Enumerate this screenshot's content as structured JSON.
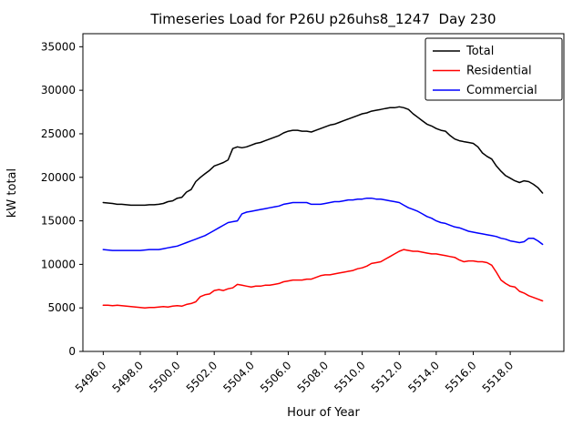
{
  "figure": {
    "title": "Timeseries Load for P26U p26uhs8_1247  Day 230",
    "xlabel": "Hour of Year",
    "ylabel": "kW total"
  },
  "chart_data": {
    "type": "line",
    "title": "Timeseries Load for P26U p26uhs8_1247  Day 230",
    "xlabel": "Hour of Year",
    "ylabel": "kW total",
    "xlim": [
      5494.9,
      5520.9
    ],
    "ylim": [
      0,
      36500
    ],
    "grid": false,
    "legend_position": "upper right",
    "xtick_values": [
      5496,
      5498,
      5500,
      5502,
      5504,
      5506,
      5508,
      5510,
      5512,
      5514,
      5516,
      5518
    ],
    "xtick_labels": [
      "5496.0",
      "5498.0",
      "5500.0",
      "5502.0",
      "5504.0",
      "5506.0",
      "5508.0",
      "5510.0",
      "5512.0",
      "5514.0",
      "5516.0",
      "5518.0"
    ],
    "ytick_values": [
      0,
      5000,
      10000,
      15000,
      20000,
      25000,
      30000,
      35000
    ],
    "ytick_labels": [
      "0",
      "5000",
      "10000",
      "15000",
      "20000",
      "25000",
      "30000",
      "35000"
    ],
    "x": [
      5496.0,
      5496.25,
      5496.5,
      5496.75,
      5497.0,
      5497.25,
      5497.5,
      5497.75,
      5498.0,
      5498.25,
      5498.5,
      5498.75,
      5499.0,
      5499.25,
      5499.5,
      5499.75,
      5500.0,
      5500.25,
      5500.5,
      5500.75,
      5501.0,
      5501.25,
      5501.5,
      5501.75,
      5502.0,
      5502.25,
      5502.5,
      5502.75,
      5503.0,
      5503.25,
      5503.5,
      5503.75,
      5504.0,
      5504.25,
      5504.5,
      5504.75,
      5505.0,
      5505.25,
      5505.5,
      5505.75,
      5506.0,
      5506.25,
      5506.5,
      5506.75,
      5507.0,
      5507.25,
      5507.5,
      5507.75,
      5508.0,
      5508.25,
      5508.5,
      5508.75,
      5509.0,
      5509.25,
      5509.5,
      5509.75,
      5510.0,
      5510.25,
      5510.5,
      5510.75,
      5511.0,
      5511.25,
      5511.5,
      5511.75,
      5512.0,
      5512.25,
      5512.5,
      5512.75,
      5513.0,
      5513.25,
      5513.5,
      5513.75,
      5514.0,
      5514.25,
      5514.5,
      5514.75,
      5515.0,
      5515.25,
      5515.5,
      5515.75,
      5516.0,
      5516.25,
      5516.5,
      5516.75,
      5517.0,
      5517.25,
      5517.5,
      5517.75,
      5518.0,
      5518.25,
      5518.5,
      5518.75,
      5519.0,
      5519.25,
      5519.5,
      5519.75
    ],
    "series": [
      {
        "name": "Total",
        "color": "#000000",
        "values": [
          17100,
          17050,
          17000,
          16900,
          16900,
          16850,
          16800,
          16800,
          16800,
          16800,
          16850,
          16850,
          16900,
          17000,
          17200,
          17300,
          17600,
          17700,
          18300,
          18600,
          19500,
          20000,
          20400,
          20800,
          21300,
          21500,
          21700,
          22000,
          23300,
          23500,
          23400,
          23500,
          23700,
          23900,
          24000,
          24200,
          24400,
          24600,
          24800,
          25100,
          25300,
          25400,
          25400,
          25300,
          25300,
          25200,
          25400,
          25600,
          25800,
          26000,
          26100,
          26300,
          26500,
          26700,
          26900,
          27100,
          27300,
          27400,
          27600,
          27700,
          27800,
          27900,
          28000,
          28000,
          28100,
          28000,
          27800,
          27300,
          26900,
          26500,
          26100,
          25900,
          25600,
          25400,
          25300,
          24800,
          24400,
          24200,
          24100,
          24000,
          23900,
          23500,
          22800,
          22400,
          22100,
          21300,
          20700,
          20200,
          19900,
          19600,
          19400,
          19600,
          19500,
          19200,
          18800,
          18200
        ]
      },
      {
        "name": "Residential",
        "color": "#ff0000",
        "values": [
          5300,
          5300,
          5250,
          5300,
          5250,
          5200,
          5150,
          5100,
          5050,
          5000,
          5050,
          5050,
          5100,
          5150,
          5100,
          5200,
          5250,
          5200,
          5400,
          5500,
          5700,
          6300,
          6500,
          6600,
          7000,
          7100,
          7000,
          7200,
          7300,
          7700,
          7600,
          7500,
          7400,
          7500,
          7500,
          7600,
          7600,
          7700,
          7800,
          8000,
          8100,
          8200,
          8200,
          8200,
          8300,
          8300,
          8500,
          8700,
          8800,
          8800,
          8900,
          9000,
          9100,
          9200,
          9300,
          9500,
          9600,
          9800,
          10100,
          10200,
          10300,
          10600,
          10900,
          11200,
          11500,
          11700,
          11600,
          11500,
          11500,
          11400,
          11300,
          11200,
          11200,
          11100,
          11000,
          10900,
          10800,
          10500,
          10300,
          10400,
          10400,
          10300,
          10300,
          10200,
          9900,
          9100,
          8200,
          7800,
          7500,
          7400,
          6900,
          6700,
          6400,
          6200,
          6000,
          5800
        ]
      },
      {
        "name": "Commercial",
        "color": "#0000ff",
        "values": [
          11700,
          11650,
          11600,
          11600,
          11600,
          11600,
          11600,
          11600,
          11600,
          11650,
          11700,
          11700,
          11700,
          11800,
          11900,
          12000,
          12100,
          12300,
          12500,
          12700,
          12900,
          13100,
          13300,
          13600,
          13900,
          14200,
          14500,
          14800,
          14900,
          15000,
          15800,
          16000,
          16100,
          16200,
          16300,
          16400,
          16500,
          16600,
          16700,
          16900,
          17000,
          17100,
          17100,
          17100,
          17100,
          16900,
          16900,
          16900,
          17000,
          17100,
          17200,
          17200,
          17300,
          17400,
          17400,
          17500,
          17500,
          17600,
          17600,
          17500,
          17500,
          17400,
          17300,
          17200,
          17100,
          16800,
          16500,
          16300,
          16100,
          15800,
          15500,
          15300,
          15000,
          14800,
          14700,
          14500,
          14300,
          14200,
          14000,
          13800,
          13700,
          13600,
          13500,
          13400,
          13300,
          13200,
          13000,
          12900,
          12700,
          12600,
          12500,
          12600,
          13000,
          13000,
          12700,
          12300
        ]
      }
    ]
  }
}
